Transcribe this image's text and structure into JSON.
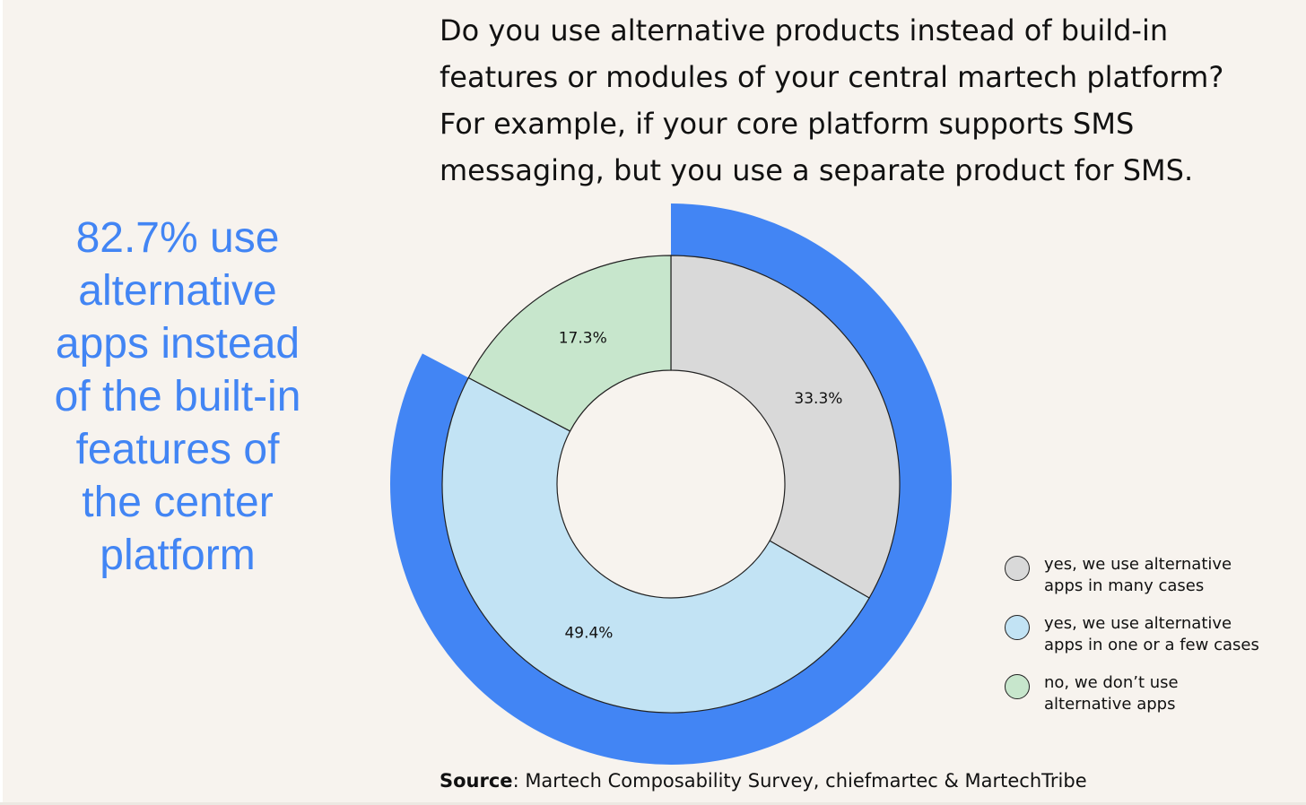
{
  "question": "Do you use alternative products instead of build-in\nfeatures or modules of your central martech platform?\nFor example, if your core platform supports SMS\nmessaging, but you use a separate product for SMS.",
  "callout": "82.7% use\nalternative\napps instead\nof the built-in\nfeatures of\nthe center\nplatform",
  "source": {
    "key": "Source",
    "text": ": Martech Composability Survey, chiefmartec & MartechTribe"
  },
  "colors": {
    "background": "#f7f3ee",
    "outer_ring": "#4285f4",
    "callout_text": "#4285f4",
    "slice_stroke": "#222222"
  },
  "legend": [
    {
      "label": "yes, we use alternative\napps in many cases",
      "color": "#d9d9d9"
    },
    {
      "label": "yes, we use alternative\napps in one or a few cases",
      "color": "#c2e3f4"
    },
    {
      "label": "no, we don’t use\nalternative apps",
      "color": "#c7e6cc"
    }
  ],
  "chart_data": {
    "type": "pie",
    "variant": "donut with highlighted outer ring",
    "slices": [
      {
        "label": "yes, we use alternative apps in many cases",
        "value": 33.3,
        "display": "33.3%",
        "color": "#d9d9d9"
      },
      {
        "label": "yes, we use alternative apps in one or a few cases",
        "value": 49.4,
        "display": "49.4%",
        "color": "#c2e3f4"
      },
      {
        "label": "no, we don’t use alternative apps",
        "value": 17.3,
        "display": "17.3%",
        "color": "#c7e6cc"
      }
    ],
    "highlight": {
      "value": 82.7,
      "covers": [
        "yes, we use alternative apps in many cases",
        "yes, we use alternative apps in one or a few cases"
      ],
      "color": "#4285f4"
    },
    "start": "12 o'clock",
    "direction": "clockwise",
    "legend_position": "right"
  }
}
